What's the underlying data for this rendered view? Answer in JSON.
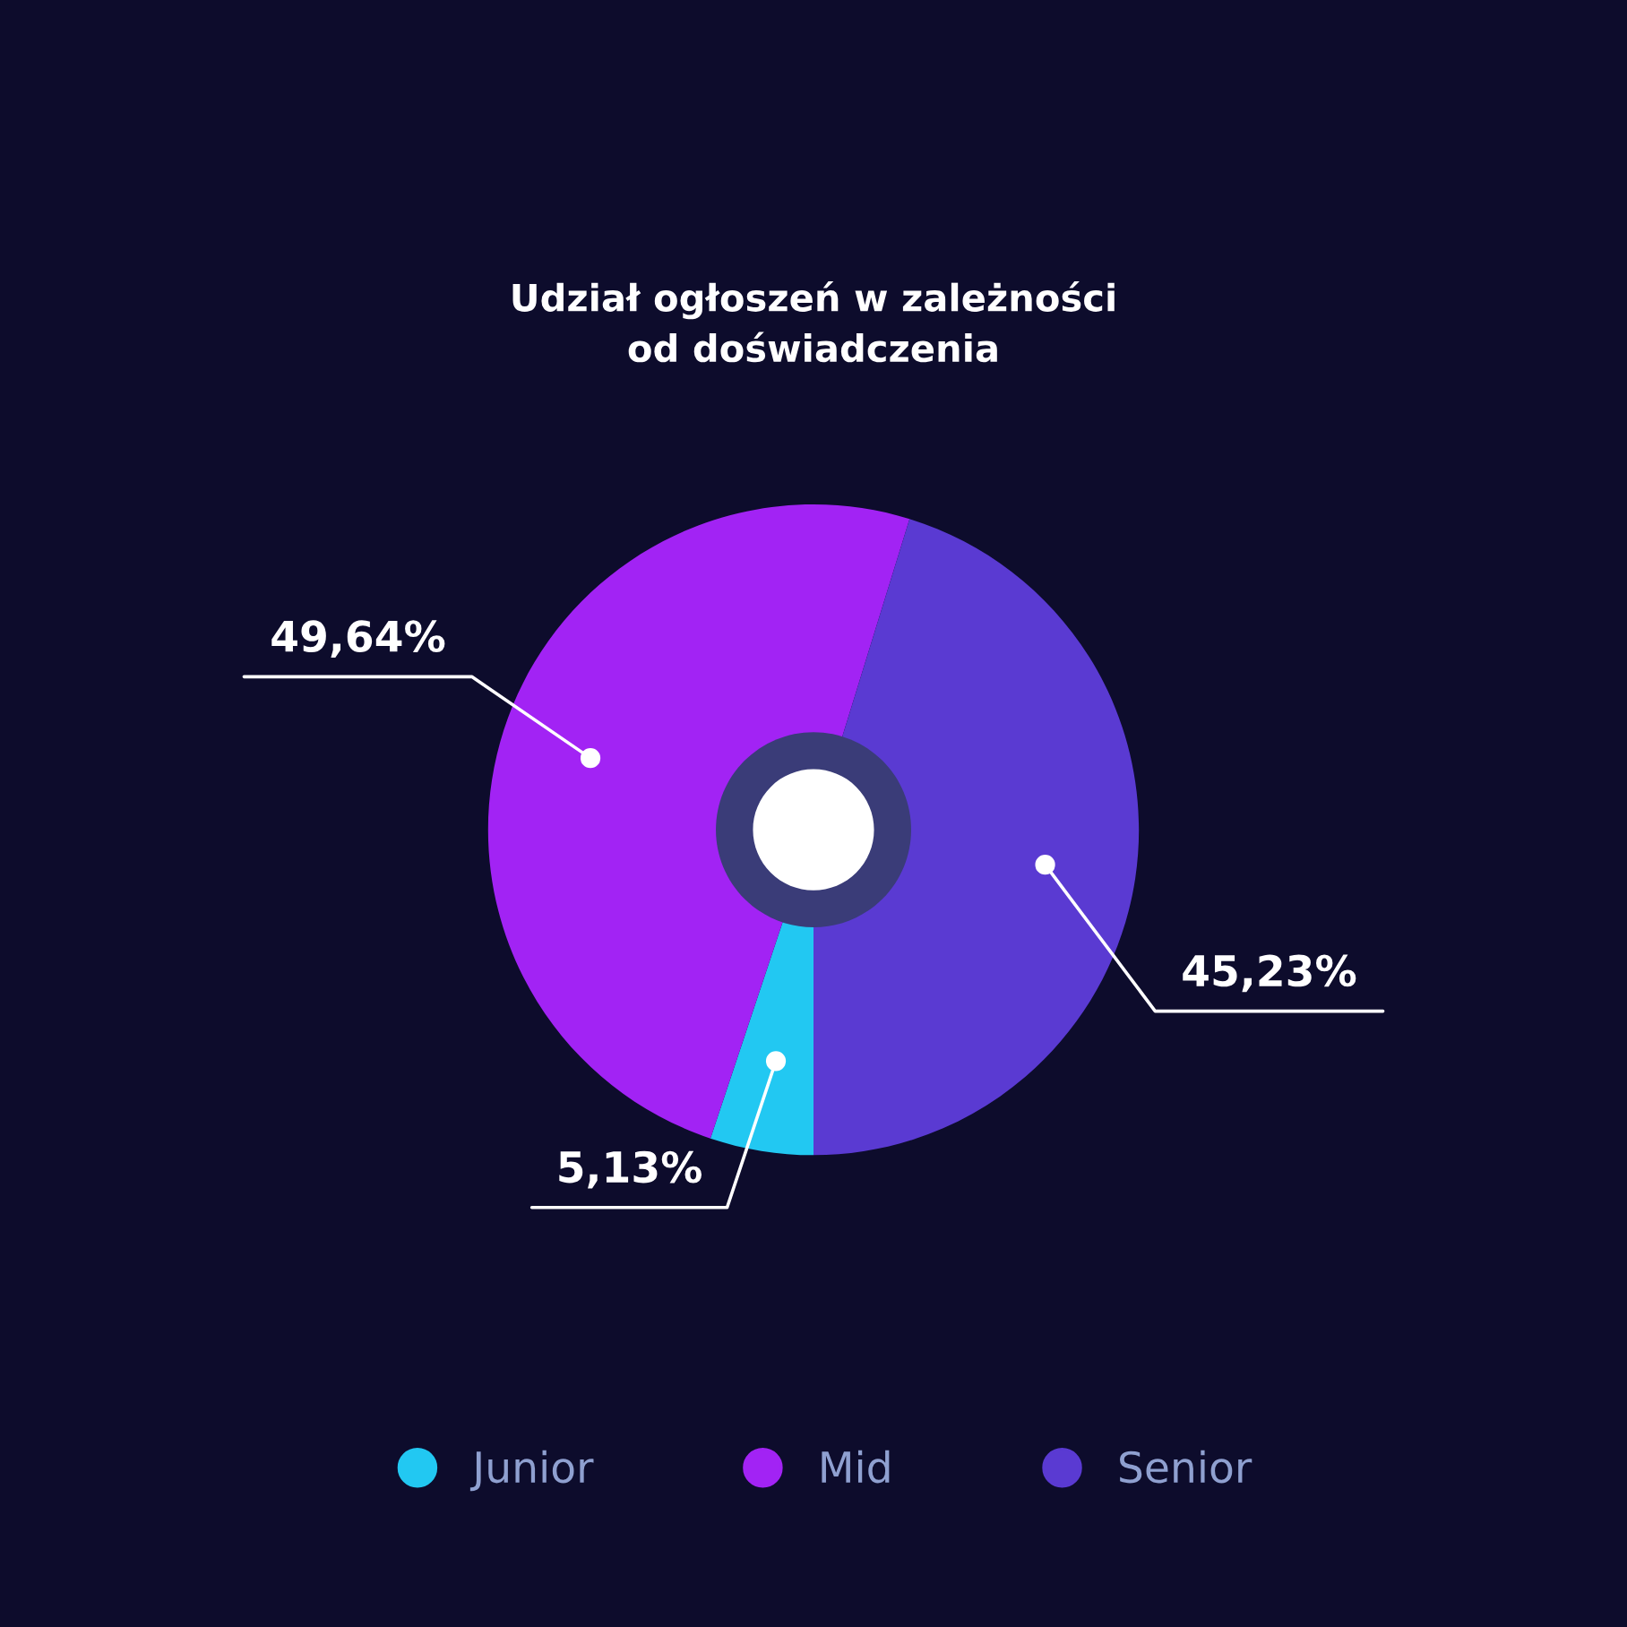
{
  "chart_data": {
    "type": "donut",
    "title": "Udział ogłoszeń w zależności\nod doświadczenia",
    "categories": [
      "Junior",
      "Mid",
      "Senior"
    ],
    "values": [
      5.13,
      49.64,
      45.23
    ],
    "value_labels": [
      "5,13%",
      "49,64%",
      "45,23%"
    ],
    "colors": [
      "#22c8f2",
      "#a223f4",
      "#5a3ad2"
    ],
    "legend": "bottom"
  }
}
